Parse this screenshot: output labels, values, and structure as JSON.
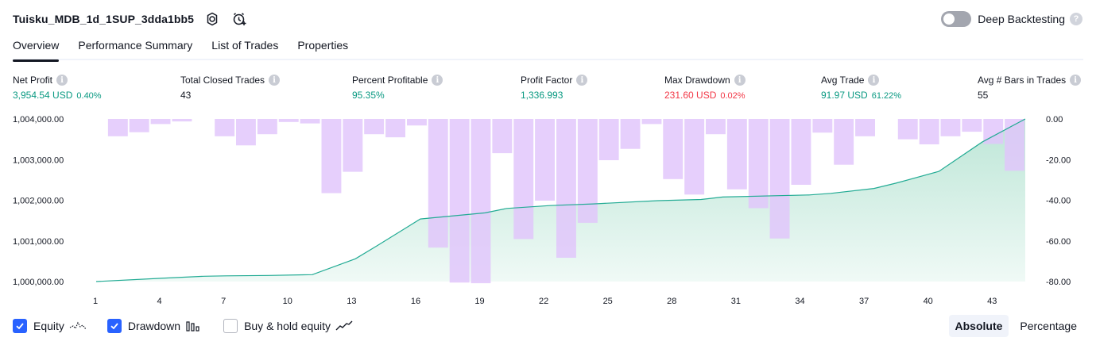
{
  "header": {
    "title": "Tuisku_MDB_1d_1SUP_3dda1bb5",
    "deep_backtesting_label": "Deep Backtesting",
    "deep_backtesting_enabled": false
  },
  "tabs": [
    {
      "label": "Overview",
      "active": true
    },
    {
      "label": "Performance Summary",
      "active": false
    },
    {
      "label": "List of Trades",
      "active": false
    },
    {
      "label": "Properties",
      "active": false
    }
  ],
  "metrics": {
    "net_profit": {
      "title": "Net Profit",
      "value": "3,954.54 USD",
      "pct": "0.40%"
    },
    "total_closed_trades": {
      "title": "Total Closed Trades",
      "value": "43"
    },
    "percent_profitable": {
      "title": "Percent Profitable",
      "value": "95.35%"
    },
    "profit_factor": {
      "title": "Profit Factor",
      "value": "1,336.993"
    },
    "max_drawdown": {
      "title": "Max Drawdown",
      "value": "231.60 USD",
      "pct": "0.02%"
    },
    "avg_trade": {
      "title": "Avg Trade",
      "value": "91.97 USD",
      "pct": "61.22%"
    },
    "avg_bars": {
      "title": "Avg # Bars in Trades",
      "value": "55"
    }
  },
  "colors": {
    "equity_line": "#22ab94",
    "equity_fill": "#d3efe6",
    "drawdown_fill": "#e1c4fb",
    "positive": "#089981",
    "negative": "#f23645",
    "accent": "#2962ff"
  },
  "chart_data": {
    "type": "area",
    "x_ticks": [
      1,
      4,
      7,
      10,
      13,
      16,
      19,
      22,
      25,
      28,
      31,
      34,
      37,
      40,
      43
    ],
    "left_axis": {
      "ticks": [
        "1,004,000.00",
        "1,003,000.00",
        "1,002,000.00",
        "1,001,000.00",
        "1,000,000.00"
      ],
      "ylim": [
        1000000,
        1004000
      ]
    },
    "right_axis": {
      "ticks": [
        "0.00",
        "-20.00",
        "-40.00",
        "-60.00",
        "-80.00"
      ],
      "ylim": [
        -80,
        0
      ]
    },
    "grid": false,
    "series": [
      {
        "name": "Equity",
        "axis": "left",
        "x": [
          1,
          4,
          6,
          7,
          9,
          11,
          13,
          14,
          16,
          19,
          20,
          22,
          24,
          27,
          29,
          30,
          34,
          35,
          37,
          38,
          40,
          42,
          44
        ],
        "values": [
          1000000,
          1000080,
          1000130,
          1000140,
          1000150,
          1000170,
          1000560,
          1000880,
          1001540,
          1001690,
          1001800,
          1001870,
          1001910,
          1001990,
          1002020,
          1002080,
          1002130,
          1002170,
          1002290,
          1002420,
          1002710,
          1003430,
          1004000
        ]
      },
      {
        "name": "Drawdown",
        "axis": "right",
        "x": [
          1,
          2,
          3,
          4,
          5,
          6,
          7,
          8,
          9,
          10,
          11,
          12,
          13,
          14,
          15,
          16,
          17,
          18,
          19,
          20,
          21,
          22,
          23,
          24,
          25,
          26,
          27,
          28,
          29,
          30,
          31,
          32,
          33,
          34,
          35,
          36,
          37,
          38,
          39,
          40,
          41,
          42,
          43,
          44
        ],
        "values": [
          0.0,
          -8.5,
          -6.5,
          -2.5,
          -1.2,
          0.0,
          -8.5,
          -13.0,
          -7.5,
          -1.5,
          -2.2,
          -36.5,
          -26.0,
          -7.5,
          -9.0,
          -3.2,
          -63.3,
          -80.5,
          -80.8,
          -16.8,
          -59.1,
          -40.2,
          -68.3,
          -51.1,
          -20.3,
          -14.7,
          -2.5,
          -29.6,
          -37.2,
          -7.5,
          -34.6,
          -43.9,
          -58.8,
          -32.4,
          -6.7,
          -22.5,
          -8.5,
          0.0,
          -10.0,
          -12.5,
          -8.5,
          -6.3,
          -12.3,
          -25.5
        ]
      }
    ]
  },
  "legend": {
    "equity": {
      "label": "Equity",
      "checked": true
    },
    "drawdown": {
      "label": "Drawdown",
      "checked": true
    },
    "buy_hold": {
      "label": "Buy & hold equity",
      "checked": false
    }
  },
  "scale": {
    "absolute_label": "Absolute",
    "percentage_label": "Percentage",
    "active": "Absolute"
  }
}
